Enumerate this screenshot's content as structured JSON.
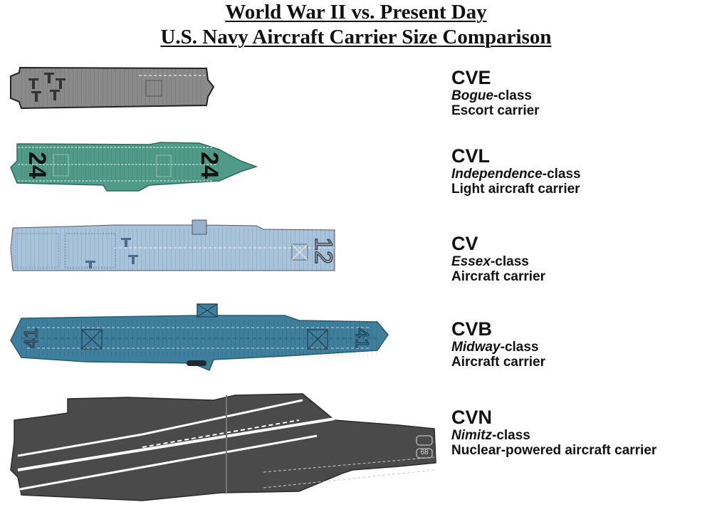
{
  "title": {
    "line1": "World War II vs. Present Day",
    "line2": "U.S. Navy Aircraft Carrier Size Comparison"
  },
  "carriers": [
    {
      "code": "CVE",
      "class_name": "Bogue",
      "class_suffix": "-class",
      "type": "Escort carrier",
      "color": "#8a8a8a",
      "hull_number": ""
    },
    {
      "code": "CVL",
      "class_name": "Independence",
      "class_suffix": "-class",
      "type": "Light aircraft carrier",
      "color": "#4f9a88",
      "hull_number": "24"
    },
    {
      "code": "CV",
      "class_name": "Essex",
      "class_suffix": "-class",
      "type": "Aircraft carrier",
      "color": "#a8c3dc",
      "hull_number": "12"
    },
    {
      "code": "CVB",
      "class_name": "Midway",
      "class_suffix": "-class",
      "type": "Aircraft carrier",
      "color": "#3d7f9c",
      "hull_number": "41"
    },
    {
      "code": "CVN",
      "class_name": "Nimitz",
      "class_suffix": "-class",
      "type": "Nuclear-powered aircraft carrier",
      "color": "#4a4a4a",
      "hull_number": "68"
    }
  ]
}
